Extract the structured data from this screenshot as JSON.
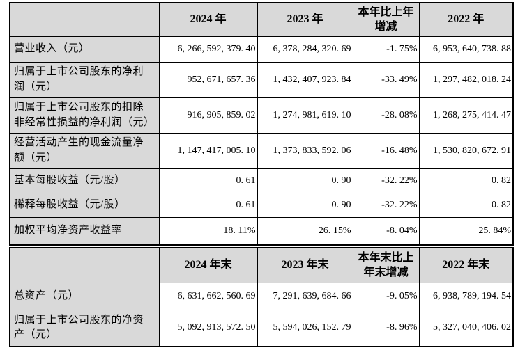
{
  "colors": {
    "header_bg": "#d9d9d9",
    "border": "#000000",
    "page_bg": "#ffffff",
    "text": "#000000"
  },
  "table_current": {
    "headers": [
      "",
      "2024 年",
      "2023 年",
      "本年比上年\n增减",
      "2022 年"
    ],
    "rows": [
      [
        "营业收入（元）",
        "6, 266, 592, 379. 40",
        "6, 378, 284, 320. 69",
        "-1. 75%",
        "6, 953, 640, 738. 88"
      ],
      [
        "归属于上市公司股东的净利\n润（元）",
        "952, 671, 657. 36",
        "1, 432, 407, 923. 84",
        "-33. 49%",
        "1, 297, 482, 018. 24"
      ],
      [
        "归属于上市公司股东的扣除\n非经常性损益的净利润（元）",
        "916, 905, 859. 02",
        "1, 274, 981, 619. 10",
        "-28. 08%",
        "1, 268, 275, 414. 47"
      ],
      [
        "经营活动产生的现金流量净\n额（元）",
        "1, 147, 417, 005. 10",
        "1, 373, 833, 592. 06",
        "-16. 48%",
        "1, 530, 820, 672. 91"
      ],
      [
        "基本每股收益（元/股）",
        "0. 61",
        "0. 90",
        "-32. 22%",
        "0. 82"
      ],
      [
        "稀释每股收益（元/股）",
        "0. 61",
        "0. 90",
        "-32. 22%",
        "0. 82"
      ],
      [
        "加权平均净资产收益率",
        "18. 11%",
        "26. 15%",
        "-8. 04%",
        "25. 84%"
      ]
    ]
  },
  "table_yearend": {
    "headers": [
      "",
      "2024 年末",
      "2023 年末",
      "本年末比上\n年末增减",
      "2022 年末"
    ],
    "rows": [
      [
        "总资产（元）",
        "6, 631, 662, 560. 69",
        "7, 291, 639, 684. 66",
        "-9. 05%",
        "6, 938, 789, 194. 54"
      ],
      [
        "归属于上市公司股东的净资\n产（元）",
        "5, 092, 913, 572. 50",
        "5, 594, 026, 152. 79",
        "-8. 96%",
        "5, 327, 040, 406. 02"
      ]
    ]
  }
}
